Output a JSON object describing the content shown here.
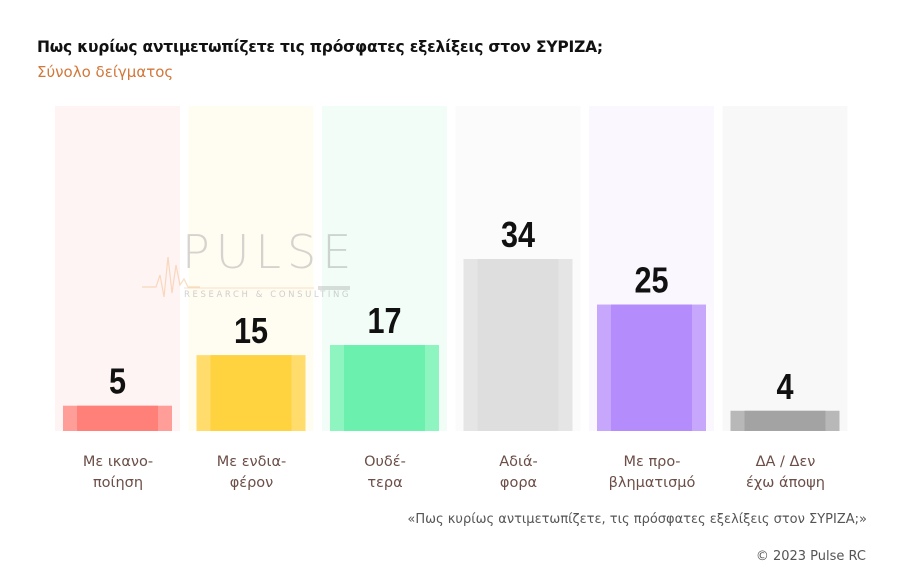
{
  "chart_data": {
    "type": "bar",
    "title": "Πως κυρίως αντιμετωπίζετε τις πρόσφατες εξελίξεις στον ΣΥΡΙΖΑ;",
    "subtitle": "Σύνολο δείγματος",
    "categories": [
      {
        "line1": "Με ικανο-",
        "line2": "ποίηση"
      },
      {
        "line1": "Με ενδια-",
        "line2": "φέρον"
      },
      {
        "line1": "Ουδέ-",
        "line2": "τερα"
      },
      {
        "line1": "Αδιά-",
        "line2": "φορα"
      },
      {
        "line1": "Με προ-",
        "line2": "βληματισμό"
      },
      {
        "line1": "ΔΑ / Δεν",
        "line2": "έχω άποψη"
      }
    ],
    "values": [
      5,
      15,
      17,
      34,
      25,
      4
    ],
    "value_labels": [
      "5",
      "15",
      "17",
      "34",
      "25",
      "4"
    ],
    "colors": [
      "#ff8079",
      "#ffd23f",
      "#6cf0ad",
      "#dedede",
      "#b48cfb",
      "#a3a3a3"
    ],
    "column_bg_colors": [
      "#fff4f4",
      "#fffcf2",
      "#f2fdf7",
      "#fbfbfb",
      "#faf7ff",
      "#f8f8f8"
    ],
    "xlabel": "",
    "ylabel": "",
    "ylim": [
      0,
      64
    ],
    "grid": false,
    "legend": "none"
  },
  "watermark": {
    "brand": "PULSE",
    "tagline": "RESEARCH & CONSULTING"
  },
  "footer": {
    "question": "«Πως κυρίως αντιμετωπίζετε, τις πρόσφατες εξελίξεις στον ΣΥΡΙΖΑ;»",
    "copyright": "© 2023 Pulse RC"
  }
}
